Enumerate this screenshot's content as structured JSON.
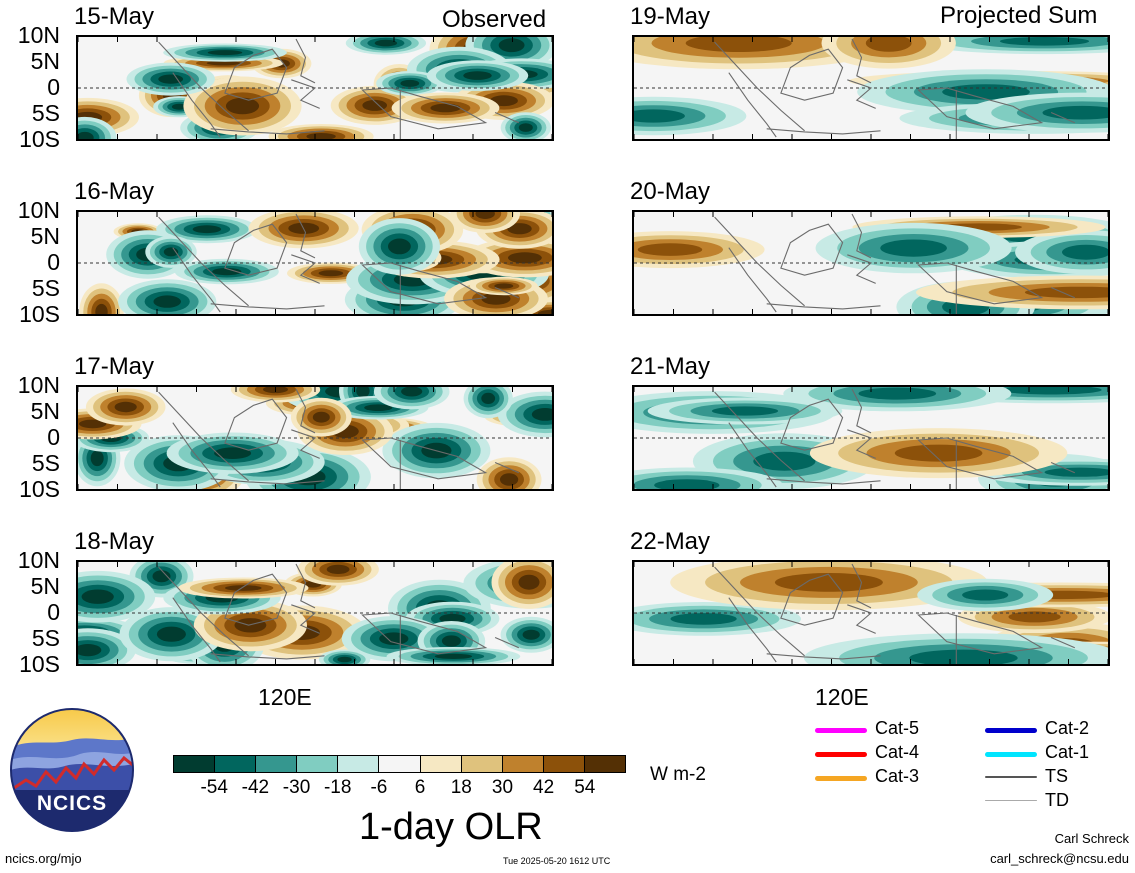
{
  "column_headers": {
    "left": "Observed",
    "right": "Projected Sum"
  },
  "panels": {
    "observed": [
      "15-May",
      "16-May",
      "17-May",
      "18-May"
    ],
    "projected": [
      "19-May",
      "20-May",
      "21-May",
      "22-May"
    ]
  },
  "lat_labels": [
    "10N",
    "5N",
    "0",
    "5S",
    "10S"
  ],
  "lon_label": "120E",
  "colorbar": {
    "colors": [
      "#013c30",
      "#01665e",
      "#35978f",
      "#80cdc1",
      "#c7eae5",
      "#f5f5f5",
      "#f6e8c3",
      "#dfc27d",
      "#bf812d",
      "#8c510a",
      "#543005"
    ],
    "tick_labels": [
      "-54",
      "-42",
      "-30",
      "-18",
      "-6",
      "6",
      "18",
      "30",
      "42",
      "54"
    ],
    "units": "W m-2"
  },
  "main_title": "1-day OLR",
  "storm_legend": [
    {
      "label": "Cat-5",
      "color": "#ff00ff"
    },
    {
      "label": "Cat-4",
      "color": "#ff0000"
    },
    {
      "label": "Cat-3",
      "color": "#f5a623"
    },
    {
      "label": "Cat-2",
      "color": "#0000cc"
    },
    {
      "label": "Cat-1",
      "color": "#00e5ff"
    },
    {
      "label": "TS",
      "color": "#555555"
    },
    {
      "label": "TD",
      "color": "#aaaaaa"
    }
  ],
  "logo": {
    "text": "NCICS"
  },
  "footer": {
    "url": "ncics.org/mjo",
    "timestamp": "Tue 2025-05-20 1612 UTC",
    "author": "Carl Schreck",
    "email": "carl_schreck@ncsu.edu"
  }
}
